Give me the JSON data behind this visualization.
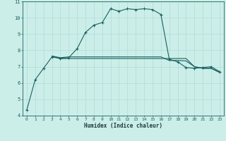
{
  "xlabel": "Humidex (Indice chaleur)",
  "bg_color": "#cceee8",
  "line_color": "#1a6060",
  "grid_color": "#aadddd",
  "xlim": [
    -0.5,
    23.5
  ],
  "ylim": [
    4,
    11
  ],
  "xticks": [
    0,
    1,
    2,
    3,
    4,
    5,
    6,
    7,
    8,
    9,
    10,
    11,
    12,
    13,
    14,
    15,
    16,
    17,
    18,
    19,
    20,
    21,
    22,
    23
  ],
  "yticks": [
    4,
    5,
    6,
    7,
    8,
    9,
    10,
    11
  ],
  "line1_x": [
    0,
    1,
    2,
    3,
    4,
    5,
    6,
    7,
    8,
    9,
    10,
    11,
    12,
    13,
    14,
    15,
    16,
    17,
    18,
    19,
    20,
    21,
    22,
    23
  ],
  "line1_y": [
    4.35,
    6.2,
    6.9,
    7.6,
    7.5,
    7.55,
    8.1,
    9.1,
    9.55,
    9.7,
    10.55,
    10.4,
    10.55,
    10.5,
    10.55,
    10.5,
    10.2,
    7.45,
    7.3,
    6.95,
    6.9,
    6.95,
    7.0,
    6.7
  ],
  "line2_x": [
    3,
    4,
    5,
    6,
    7,
    8,
    9,
    10,
    11,
    12,
    13,
    14,
    15,
    16,
    17,
    18,
    19,
    20,
    21,
    22,
    23
  ],
  "line2_y": [
    7.65,
    7.5,
    7.5,
    7.5,
    7.5,
    7.5,
    7.5,
    7.5,
    7.5,
    7.5,
    7.5,
    7.5,
    7.5,
    7.5,
    7.5,
    7.5,
    7.5,
    7.0,
    6.9,
    6.9,
    6.65
  ],
  "line3_x": [
    3,
    4,
    5,
    6,
    7,
    8,
    9,
    10,
    11,
    12,
    13,
    14,
    15,
    16,
    17,
    18,
    19,
    20,
    21,
    22,
    23
  ],
  "line3_y": [
    7.65,
    7.55,
    7.6,
    7.6,
    7.6,
    7.6,
    7.6,
    7.6,
    7.6,
    7.6,
    7.6,
    7.6,
    7.6,
    7.6,
    7.38,
    7.38,
    7.35,
    7.0,
    6.9,
    6.9,
    6.65
  ]
}
